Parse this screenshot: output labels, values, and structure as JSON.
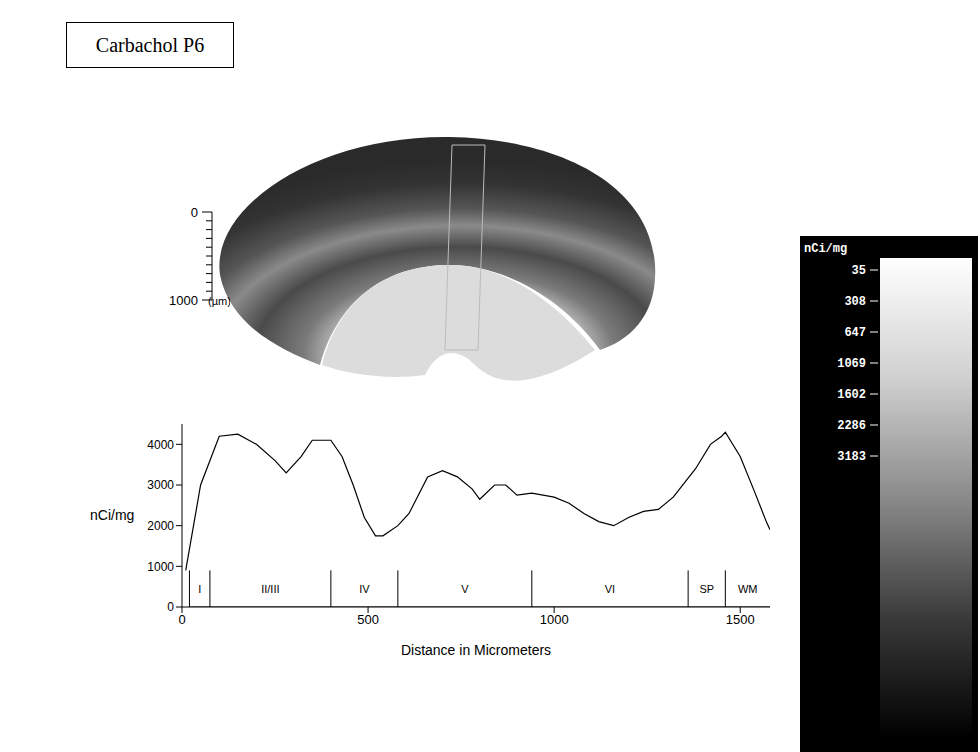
{
  "chart_data": {
    "type": "line",
    "title": "Carbachol P6",
    "xlabel": "Distance in Micrometers",
    "ylabel": "nCi/mg",
    "x": [
      10,
      50,
      100,
      150,
      200,
      250,
      280,
      320,
      350,
      400,
      430,
      460,
      490,
      520,
      540,
      580,
      610,
      660,
      700,
      740,
      780,
      800,
      840,
      870,
      900,
      940,
      1000,
      1040,
      1080,
      1120,
      1160,
      1200,
      1240,
      1280,
      1320,
      1380,
      1420,
      1450,
      1460,
      1500,
      1540,
      1570,
      1580
    ],
    "values": [
      900,
      3000,
      4200,
      4250,
      4000,
      3600,
      3300,
      3700,
      4100,
      4100,
      3700,
      3000,
      2200,
      1750,
      1750,
      2000,
      2300,
      3200,
      3350,
      3200,
      2900,
      2650,
      3000,
      3000,
      2750,
      2800,
      2700,
      2550,
      2300,
      2100,
      2000,
      2200,
      2350,
      2400,
      2700,
      3400,
      4000,
      4200,
      4300,
      3700,
      2800,
      2100,
      1900
    ],
    "color": "#000000",
    "xlim": [
      0,
      1580
    ],
    "xticks": [
      0,
      500,
      1000,
      1500
    ],
    "ylim": [
      0,
      4500
    ],
    "yticks": [
      0,
      1000,
      2000,
      3000,
      4000
    ],
    "grid": false,
    "layers": [
      {
        "name": "I",
        "start": 20,
        "end": 75
      },
      {
        "name": "II/III",
        "start": 75,
        "end": 400
      },
      {
        "name": "IV",
        "start": 400,
        "end": 580
      },
      {
        "name": "V",
        "start": 580,
        "end": 940
      },
      {
        "name": "VI",
        "start": 940,
        "end": 1360
      },
      {
        "name": "SP",
        "start": 1360,
        "end": 1460
      },
      {
        "name": "WM",
        "start": 1460,
        "end": 1580
      }
    ]
  },
  "scale_bar": {
    "ticks": [
      0,
      1000
    ],
    "unit": "(µm)"
  },
  "color_bar": {
    "unit": "nCi/mg",
    "ticks": [
      35,
      308,
      647,
      1069,
      1602,
      2286,
      3183
    ]
  }
}
